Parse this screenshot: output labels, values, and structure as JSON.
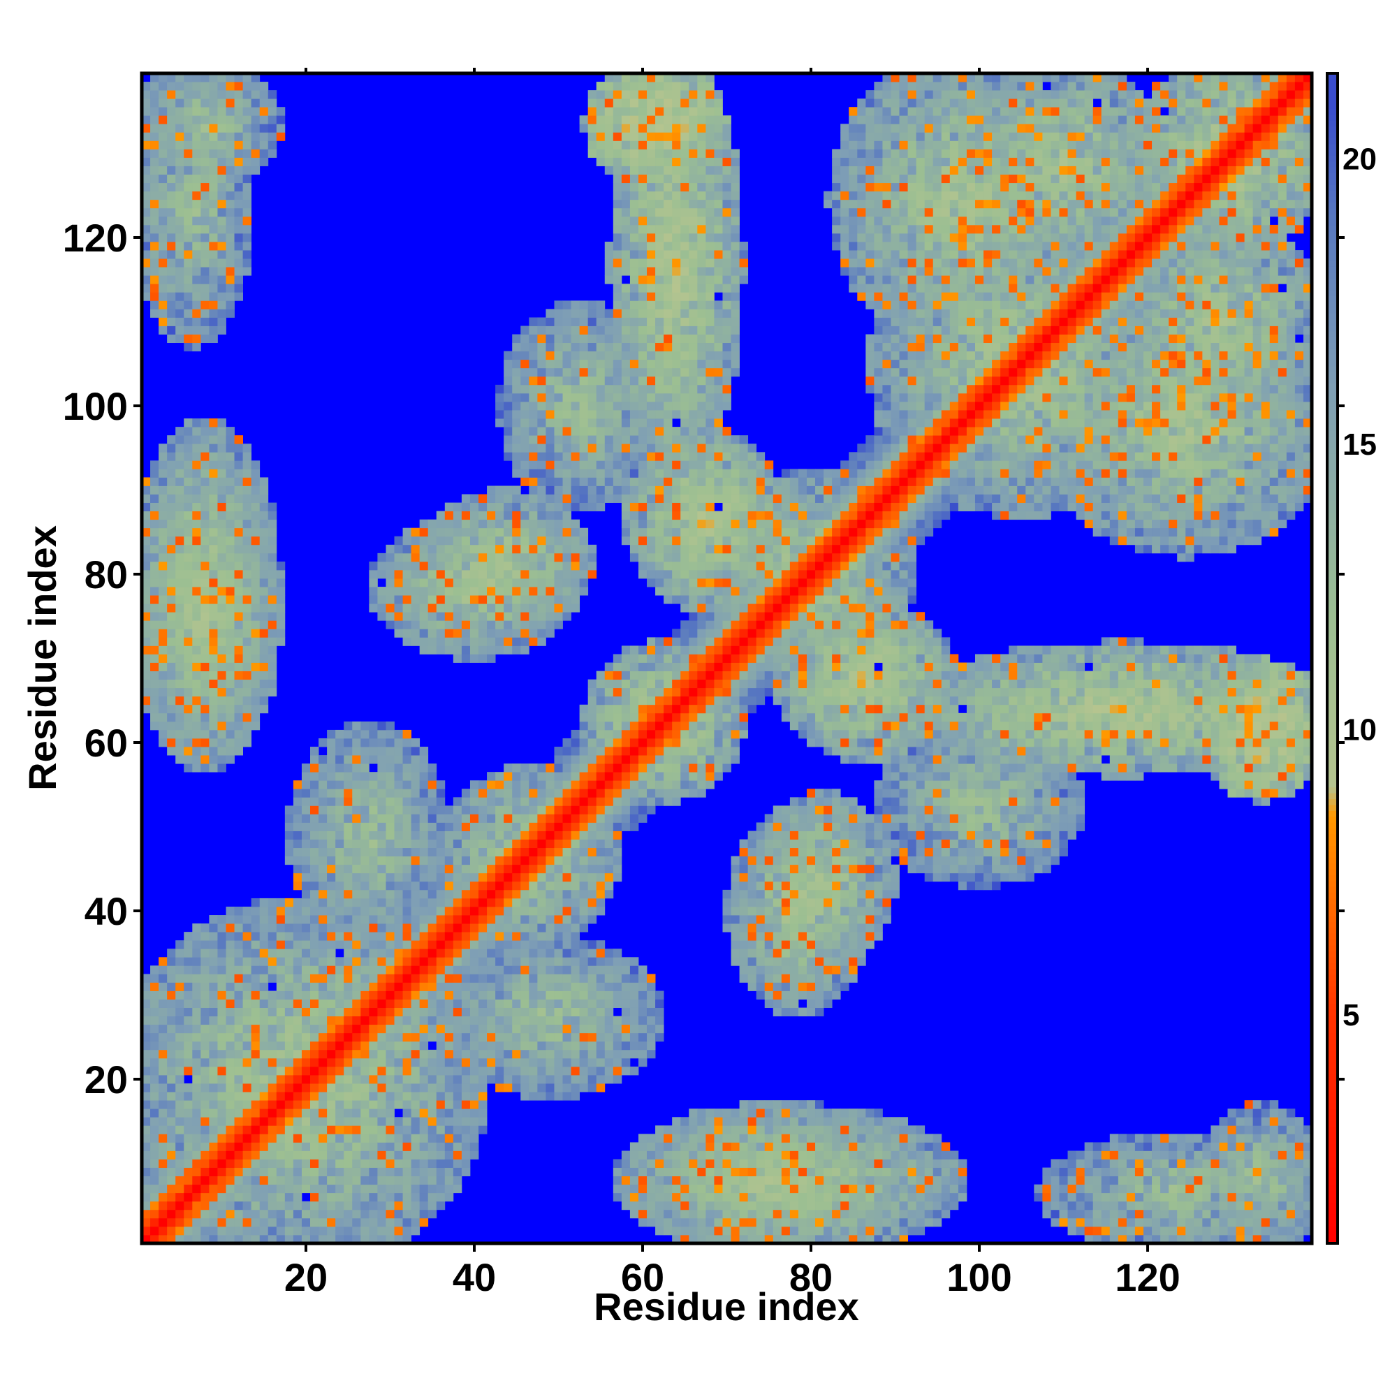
{
  "chart_data": {
    "type": "heatmap",
    "title": "",
    "xlabel": "Residue index",
    "ylabel": "Residue index",
    "n_residues": 139,
    "xlim": [
      1,
      139
    ],
    "ylim": [
      1,
      139
    ],
    "x_ticks": [
      20,
      40,
      60,
      80,
      100,
      120
    ],
    "y_ticks": [
      20,
      40,
      60,
      80,
      100,
      120
    ],
    "colorbar": {
      "range": [
        1,
        21.5
      ],
      "ticks": [
        5,
        10,
        15,
        20
      ],
      "colors": {
        "contact": "#ff0000",
        "near": "#ff8c00",
        "mid": "#9fbf8f",
        "far": "#6f8fb8",
        "none": "#0000ff"
      },
      "stops": [
        {
          "value": 1,
          "color": "#ff0000"
        },
        {
          "value": 5,
          "color": "#ff3300"
        },
        {
          "value": 8.5,
          "color": "#ff9900"
        },
        {
          "value": 9,
          "color": "#b5c48f"
        },
        {
          "value": 12,
          "color": "#9cbf92"
        },
        {
          "value": 16,
          "color": "#7f9fb5"
        },
        {
          "value": 19,
          "color": "#5878c0"
        },
        {
          "value": 21.5,
          "color": "#3040d0"
        }
      ]
    },
    "contact_blocks": [
      {
        "x": [
          1,
          38
        ],
        "y": [
          1,
          38
        ],
        "value": 12
      },
      {
        "x": [
          38,
          55
        ],
        "y": [
          38,
          55
        ],
        "value": 12
      },
      {
        "x": [
          55,
          70
        ],
        "y": [
          55,
          70
        ],
        "value": 11
      },
      {
        "x": [
          70,
          90
        ],
        "y": [
          70,
          90
        ],
        "value": 12
      },
      {
        "x": [
          90,
          120
        ],
        "y": [
          90,
          120
        ],
        "value": 12
      },
      {
        "x": [
          120,
          139
        ],
        "y": [
          120,
          139
        ],
        "value": 11
      },
      {
        "x": [
          1,
          15
        ],
        "y": [
          60,
          95
        ],
        "value": 12
      },
      {
        "x": [
          60,
          95
        ],
        "y": [
          1,
          15
        ],
        "value": 12
      },
      {
        "x": [
          1,
          12
        ],
        "y": [
          110,
          139
        ],
        "value": 13
      },
      {
        "x": [
          110,
          139
        ],
        "y": [
          1,
          12
        ],
        "value": 13
      },
      {
        "x": [
          35,
          52
        ],
        "y": [
          75,
          88
        ],
        "value": 12
      },
      {
        "x": [
          75,
          88
        ],
        "y": [
          35,
          52
        ],
        "value": 12
      },
      {
        "x": [
          58,
          70
        ],
        "y": [
          95,
          139
        ],
        "value": 11
      },
      {
        "x": [
          95,
          139
        ],
        "y": [
          58,
          70
        ],
        "value": 11
      },
      {
        "x": [
          60,
          75
        ],
        "y": [
          78,
          95
        ],
        "value": 11
      },
      {
        "x": [
          78,
          95
        ],
        "y": [
          60,
          75
        ],
        "value": 11
      },
      {
        "x": [
          85,
          110
        ],
        "y": [
          110,
          139
        ],
        "value": 12
      },
      {
        "x": [
          110,
          139
        ],
        "y": [
          85,
          110
        ],
        "value": 12
      },
      {
        "x": [
          72,
          85
        ],
        "y": [
          30,
          50
        ],
        "value": 12
      },
      {
        "x": [
          30,
          50
        ],
        "y": [
          72,
          85
        ],
        "value": 12
      },
      {
        "x": [
          60,
          90
        ],
        "y": [
          1,
          15
        ],
        "value": 12
      },
      {
        "x": [
          1,
          15
        ],
        "y": [
          60,
          90
        ],
        "value": 12
      },
      {
        "x": [
          128,
          139
        ],
        "y": [
          55,
          68
        ],
        "value": 9
      },
      {
        "x": [
          55,
          68
        ],
        "y": [
          128,
          139
        ],
        "value": 9
      },
      {
        "x": [
          118,
          139
        ],
        "y": [
          100,
          120
        ],
        "value": 12
      },
      {
        "x": [
          100,
          120
        ],
        "y": [
          118,
          139
        ],
        "value": 12
      },
      {
        "x": [
          90,
          110
        ],
        "y": [
          45,
          60
        ],
        "value": 13
      },
      {
        "x": [
          45,
          60
        ],
        "y": [
          90,
          110
        ],
        "value": 13
      },
      {
        "x": [
          128,
          139
        ],
        "y": [
          1,
          15
        ],
        "value": 13
      },
      {
        "x": [
          1,
          15
        ],
        "y": [
          128,
          139
        ],
        "value": 13
      },
      {
        "x": [
          20,
          35
        ],
        "y": [
          38,
          60
        ],
        "value": 13
      },
      {
        "x": [
          38,
          60
        ],
        "y": [
          20,
          35
        ],
        "value": 13
      }
    ]
  }
}
